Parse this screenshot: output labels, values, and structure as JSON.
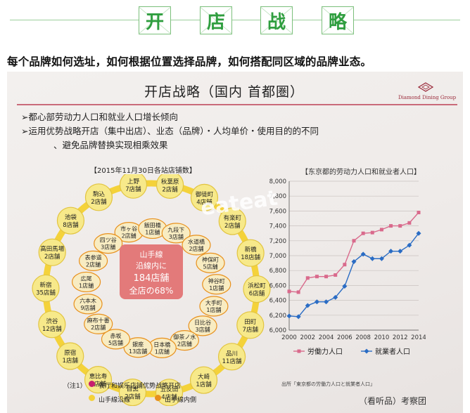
{
  "header": {
    "chars": [
      "开",
      "店",
      "战",
      "略"
    ],
    "accent": "#2f9e3f"
  },
  "subtitle": "每个品牌如何选址，如何根据位置选择品牌，如何搭配同区域的品牌业态。",
  "slide": {
    "title": "开店战略（国内 首都圏）",
    "brand_name": "Diamond Dining Group",
    "bullet1": "➢都心部劳动力人口和就业人口增长倾向",
    "bullet2": "➢运用优势战略开店（集中出店）、业态（品牌）・人均单价・使用目的的不同",
    "bullet3": "、避免品牌替换实现相乘效果",
    "map_caption": "【2015年11月30日各站店铺数】",
    "chart_caption": "【东京都的劳动力人口和就业者人口】",
    "center_lines": [
      "山手線",
      "沿線内に",
      "184店舗",
      "全店の68%"
    ],
    "legend_note": "（注1）",
    "legend_items": [
      "餐厅和娱乐店铺优势战略开店",
      "山手線沿線",
      "山手線内側"
    ],
    "source": "出所「東京都の労働力人口と就業者人口」",
    "watermark": "eateat",
    "credit": "（看听品）考察团",
    "stations_ring": [
      {
        "name": "駒込",
        "count": "2店舗"
      },
      {
        "name": "上野",
        "count": "7店舗"
      },
      {
        "name": "秋葉原",
        "count": "2店舗"
      },
      {
        "name": "御徒町",
        "count": "4店舗"
      },
      {
        "name": "有楽町",
        "count": "2店舗"
      },
      {
        "name": "新橋",
        "count": "18店舗"
      },
      {
        "name": "浜松町",
        "count": "6店舗"
      },
      {
        "name": "田町",
        "count": "7店舗"
      },
      {
        "name": "品川",
        "count": "11店舗"
      },
      {
        "name": "大崎",
        "count": "1店舗"
      },
      {
        "name": "五反田",
        "count": "4店舗"
      },
      {
        "name": "目黒",
        "count": "2店舗"
      },
      {
        "name": "恵比寿",
        "count": "8店舗"
      },
      {
        "name": "原宿",
        "count": "1店舗"
      },
      {
        "name": "渋谷",
        "count": "12店舗"
      },
      {
        "name": "新宿",
        "count": "35店舗"
      },
      {
        "name": "高田馬場",
        "count": "2店舗"
      },
      {
        "name": "池袋",
        "count": "8店舗"
      }
    ],
    "stations_inner": [
      {
        "name": "市ヶ谷",
        "count": "2店舗"
      },
      {
        "name": "飯田橋",
        "count": "1店舗"
      },
      {
        "name": "九段下",
        "count": "3店舗"
      },
      {
        "name": "水道橋",
        "count": "2店舗"
      },
      {
        "name": "神保町",
        "count": "5店舗"
      },
      {
        "name": "神谷町",
        "count": "1店舗"
      },
      {
        "name": "大手町",
        "count": "1店舗"
      },
      {
        "name": "日比谷",
        "count": "3店舗"
      },
      {
        "name": "御茶ノ水",
        "count": "2店舗"
      },
      {
        "name": "日本橋",
        "count": "1店舗"
      },
      {
        "name": "銀座",
        "count": "13店舗"
      },
      {
        "name": "赤坂",
        "count": "5店舗"
      },
      {
        "name": "麻布十番",
        "count": "2店舗"
      },
      {
        "name": "六本木",
        "count": "9店舗"
      },
      {
        "name": "広尾",
        "count": "1店舗"
      },
      {
        "name": "表参道",
        "count": "2店舗"
      },
      {
        "name": "四ツ谷",
        "count": "3店舗"
      }
    ],
    "colors": {
      "ring": "#f4d23a",
      "node": "#f7e98a",
      "badge_pink": "#c81e6e",
      "badge_orange": "#e8901c",
      "center": "#e37a7a"
    }
  },
  "chart_data": {
    "type": "line",
    "title": "【东京都的劳动力人口和就业者人口】",
    "x": [
      2000,
      2001,
      2002,
      2003,
      2004,
      2005,
      2006,
      2007,
      2008,
      2009,
      2010,
      2011,
      2012,
      2013,
      2014
    ],
    "series": [
      {
        "name": "労働力人口",
        "color": "#d96a8c",
        "values": [
          6520,
          6510,
          6700,
          6720,
          6720,
          6740,
          6880,
          7200,
          7300,
          7310,
          7350,
          7400,
          7400,
          7440,
          7580
        ]
      },
      {
        "name": "就業者人口",
        "color": "#2a6cc4",
        "values": [
          6190,
          6180,
          6330,
          6380,
          6380,
          6440,
          6590,
          6920,
          7020,
          6960,
          6960,
          7060,
          7060,
          7140,
          7300
        ]
      }
    ],
    "xticks": [
      "2000",
      "2002",
      "2004",
      "2006",
      "2008",
      "2010",
      "2012",
      "2014"
    ],
    "yticks": [
      "6,000",
      "6,200",
      "6,400",
      "6,600",
      "6,800",
      "7,000",
      "7,200",
      "7,400",
      "7,600",
      "7,800",
      "8,000"
    ],
    "ylim": [
      6000,
      8000
    ],
    "xlim": [
      2000,
      2014
    ],
    "grid": true,
    "legend_position": "bottom"
  }
}
